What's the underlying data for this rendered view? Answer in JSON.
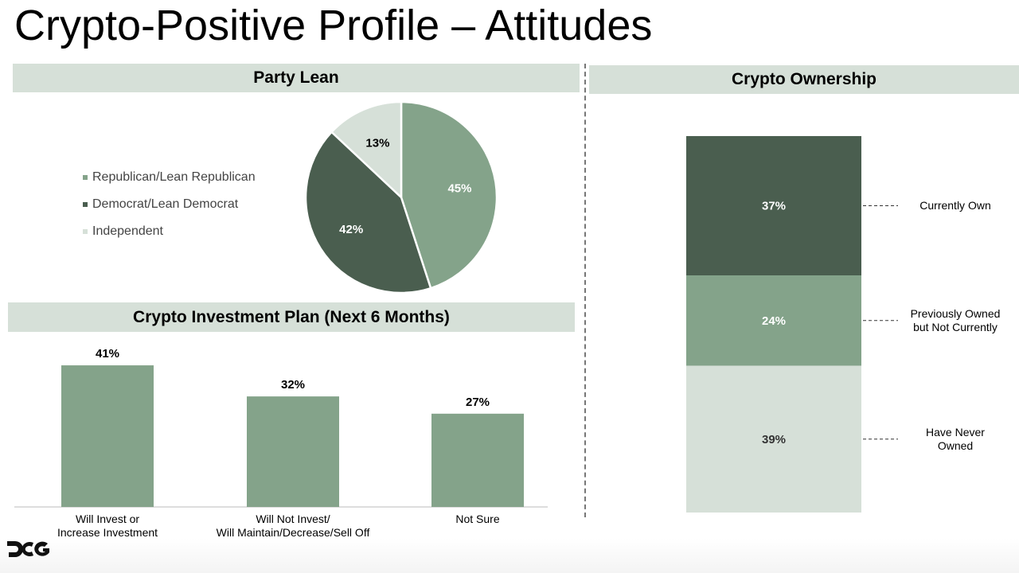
{
  "title": "Crypto-Positive Profile – Attitudes",
  "colors": {
    "mid": "#84a38a",
    "dark": "#4a5e4f",
    "light": "#d6e0d8",
    "header": "#d6e0d8"
  },
  "logo_text": "DCG",
  "chart_data": [
    {
      "type": "pie",
      "title": "Party Lean",
      "legend": "left",
      "slices": [
        {
          "label": "Republican/Lean Republican",
          "value": 45,
          "display": "45%",
          "color": "#84a38a"
        },
        {
          "label": "Democrat/Lean Democrat",
          "value": 42,
          "display": "42%",
          "color": "#4a5e4f"
        },
        {
          "label": "Independent",
          "value": 13,
          "display": "13%",
          "color": "#d6e0d8"
        }
      ]
    },
    {
      "type": "bar",
      "title": "Crypto Investment Plan (Next 6 Months)",
      "categories": [
        "Will Invest or\nIncrease Investment",
        "Will Not Invest/\nWill Maintain/Decrease/Sell Off",
        "Not Sure"
      ],
      "values": [
        41,
        32,
        27
      ],
      "labels": [
        "41%",
        "32%",
        "27%"
      ],
      "color": "#84a38a",
      "grid": false
    },
    {
      "type": "bar",
      "stacked": true,
      "title": "Crypto Ownership",
      "segments": [
        {
          "label": "Currently Own",
          "value": 37,
          "display": "37%",
          "color": "#4a5e4f"
        },
        {
          "label": "Previously Owned\nbut Not Currently",
          "value": 24,
          "display": "24%",
          "color": "#84a38a"
        },
        {
          "label": "Have Never\nOwned",
          "value": 39,
          "display": "39%",
          "color": "#d6e0d8"
        }
      ]
    }
  ]
}
